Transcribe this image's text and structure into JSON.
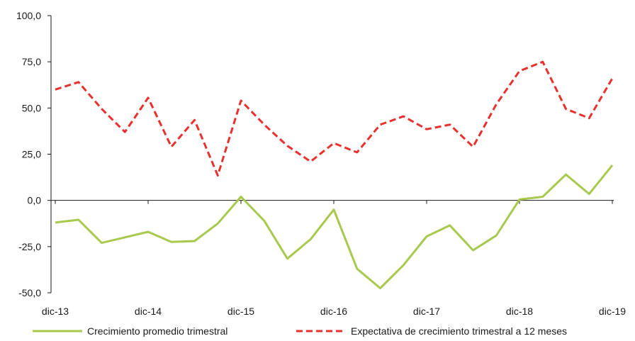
{
  "chart_data": {
    "type": "line",
    "title": "",
    "xlabel": "",
    "ylabel": "",
    "ylim": [
      -50,
      100
    ],
    "yticks": [
      -50,
      -25,
      0,
      25,
      50,
      75,
      100
    ],
    "ytick_labels": [
      "-50,0",
      "-25,0",
      "0,0",
      "25,0",
      "50,0",
      "75,0",
      "100,0"
    ],
    "x_tick_labels": [
      "dic-13",
      "dic-14",
      "dic-15",
      "dic-16",
      "dic-17",
      "dic-18",
      "dic-19"
    ],
    "x_tick_positions": [
      0,
      4,
      8,
      12,
      16,
      20,
      24
    ],
    "x_count": 25,
    "grid": false,
    "legend_position": "bottom",
    "series": [
      {
        "name": "Crecimiento promedio trimestral",
        "color": "#a8c84e",
        "style": "solid",
        "values": [
          -12,
          -10.5,
          -23,
          -20,
          -17,
          -22.5,
          -22,
          -12.5,
          2,
          -11,
          -31.5,
          -21,
          -5,
          -37,
          -47.5,
          -35,
          -19.5,
          -13.5,
          -27,
          -19,
          0.5,
          2,
          14,
          3.5,
          19
        ]
      },
      {
        "name": "Expectativa de crecimiento trimestral a 12 meses",
        "color": "#e8312f",
        "style": "dashed",
        "values": [
          60,
          64,
          49.5,
          37,
          55.5,
          29,
          43.5,
          13.5,
          54,
          41,
          29.5,
          21,
          31,
          26,
          41,
          45.5,
          38.5,
          41,
          29,
          52,
          70,
          75,
          49.5,
          44.5,
          66
        ]
      }
    ]
  }
}
